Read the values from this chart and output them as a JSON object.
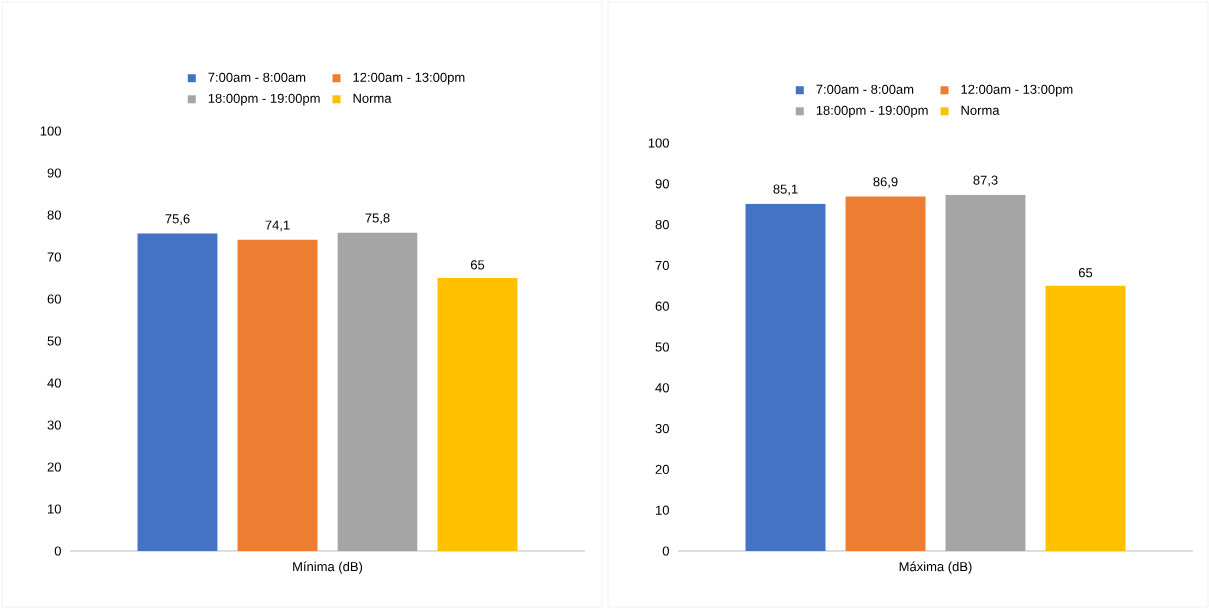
{
  "chart_data": [
    {
      "type": "bar",
      "categories": [
        "Mínima (dB)"
      ],
      "ylim": [
        0,
        100
      ],
      "yticks": [
        0,
        10,
        20,
        30,
        40,
        50,
        60,
        70,
        80,
        90,
        100
      ],
      "legend": "top",
      "series": [
        {
          "name": "7:00am - 8:00am",
          "color": "#4472c4",
          "values": [
            75.6
          ],
          "value_labels": [
            "75,6"
          ]
        },
        {
          "name": "12:00am - 13:00pm",
          "color": "#ed7d31",
          "values": [
            74.1
          ],
          "value_labels": [
            "74,1"
          ]
        },
        {
          "name": "18:00pm - 19:00pm",
          "color": "#a5a5a5",
          "values": [
            75.8
          ],
          "value_labels": [
            "75,8"
          ]
        },
        {
          "name": "Norma",
          "color": "#ffc000",
          "values": [
            65
          ],
          "value_labels": [
            "65"
          ]
        }
      ]
    },
    {
      "type": "bar",
      "categories": [
        "Máxima (dB)"
      ],
      "ylim": [
        0,
        100
      ],
      "yticks": [
        0,
        10,
        20,
        30,
        40,
        50,
        60,
        70,
        80,
        90,
        100
      ],
      "legend": "top",
      "series": [
        {
          "name": "7:00am - 8:00am",
          "color": "#4472c4",
          "values": [
            85.1
          ],
          "value_labels": [
            "85,1"
          ]
        },
        {
          "name": "12:00am - 13:00pm",
          "color": "#ed7d31",
          "values": [
            86.9
          ],
          "value_labels": [
            "86,9"
          ]
        },
        {
          "name": "18:00pm - 19:00pm",
          "color": "#a5a5a5",
          "values": [
            87.3
          ],
          "value_labels": [
            "87,3"
          ]
        },
        {
          "name": "Norma",
          "color": "#ffc000",
          "values": [
            65
          ],
          "value_labels": [
            "65"
          ]
        }
      ]
    }
  ]
}
